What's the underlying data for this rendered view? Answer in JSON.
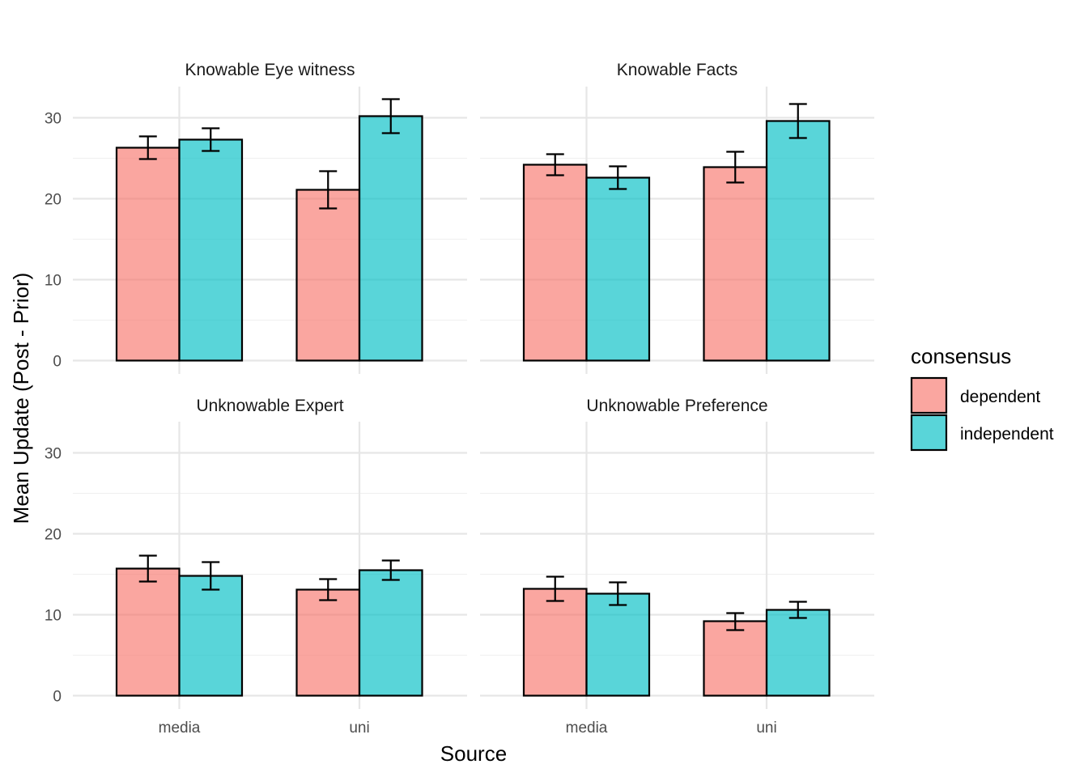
{
  "chart_data": {
    "type": "bar",
    "xlabel": "Source",
    "ylabel": "Mean Update (Post - Prior)",
    "ylim": [
      0,
      33
    ],
    "yticks": [
      0,
      10,
      20,
      30
    ],
    "categories": [
      "media",
      "uni"
    ],
    "grid": true,
    "legend": {
      "title": "consensus",
      "position": "right",
      "entries": [
        {
          "name": "dependent",
          "color": "#F8766D"
        },
        {
          "name": "independent",
          "color": "#00BFC4"
        }
      ]
    },
    "facets": [
      {
        "title": "Knowable Eye witness",
        "series": [
          {
            "name": "dependent",
            "values": [
              26.3,
              21.1
            ],
            "err_low": [
              24.9,
              18.8
            ],
            "err_high": [
              27.7,
              23.4
            ]
          },
          {
            "name": "independent",
            "values": [
              27.3,
              30.2
            ],
            "err_low": [
              25.9,
              28.1
            ],
            "err_high": [
              28.7,
              32.3
            ]
          }
        ]
      },
      {
        "title": "Knowable Facts",
        "series": [
          {
            "name": "dependent",
            "values": [
              24.2,
              23.9
            ],
            "err_low": [
              22.9,
              22.0
            ],
            "err_high": [
              25.5,
              25.8
            ]
          },
          {
            "name": "independent",
            "values": [
              22.6,
              29.6
            ],
            "err_low": [
              21.2,
              27.5
            ],
            "err_high": [
              24.0,
              31.7
            ]
          }
        ]
      },
      {
        "title": "Unknowable Expert",
        "series": [
          {
            "name": "dependent",
            "values": [
              15.7,
              13.1
            ],
            "err_low": [
              14.1,
              11.8
            ],
            "err_high": [
              17.3,
              14.4
            ]
          },
          {
            "name": "independent",
            "values": [
              14.8,
              15.5
            ],
            "err_low": [
              13.1,
              14.3
            ],
            "err_high": [
              16.5,
              16.7
            ]
          }
        ]
      },
      {
        "title": "Unknowable Preference",
        "series": [
          {
            "name": "dependent",
            "values": [
              13.2,
              9.2
            ],
            "err_low": [
              11.7,
              8.1
            ],
            "err_high": [
              14.7,
              10.2
            ]
          },
          {
            "name": "independent",
            "values": [
              12.6,
              10.6
            ],
            "err_low": [
              11.2,
              9.6
            ],
            "err_high": [
              14.0,
              11.6
            ]
          }
        ]
      }
    ]
  }
}
